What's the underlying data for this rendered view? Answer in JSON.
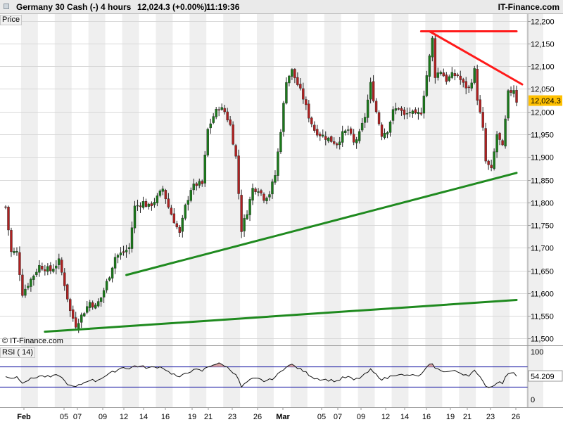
{
  "header": {
    "instrument": "Germany 30 Cash (-)",
    "timeframe": "4 hours",
    "quote": "12,024.3 (+0.00%)",
    "time": "11:19:36",
    "brand": "IT-Finance.com"
  },
  "price_panel_label": "Price",
  "watermark": "© IT-Finance.com",
  "rsi_panel_label": "RSI ( 14)",
  "current_price_label": "12,024.3",
  "current_rsi_label": "54.209",
  "colors": {
    "up": "#1a7a1a",
    "down": "#b02020",
    "support": "#1f8a1f",
    "resistance": "#ff1a1a",
    "price_tag": "#ffc000",
    "rsi_band": "#1010a0",
    "overbought_fill": "#d7a0a0",
    "oversold_fill": "#9aa0d8"
  },
  "chart_data": [
    {
      "type": "candlestick",
      "title": "Germany 30 Cash (-)",
      "interval": "4 hours",
      "ylabel": "Price",
      "ylim": [
        11485,
        12215
      ],
      "yticks": [
        11500,
        11550,
        11600,
        11650,
        11700,
        11750,
        11800,
        11850,
        11900,
        11950,
        12000,
        12050,
        12100,
        12150,
        12200
      ],
      "ytick_labels": [
        "11,500",
        "11,550",
        "11,600",
        "11,650",
        "11,700",
        "11,750",
        "11,800",
        "11,850",
        "11,900",
        "11,950",
        "12,000",
        "12,050",
        "12,100",
        "12,150",
        "12,200"
      ],
      "x_labels": [
        "Feb",
        "05",
        "07",
        "09",
        "12",
        "14",
        "16",
        "19",
        "21",
        "23",
        "26",
        "Mar",
        "05",
        "07",
        "09",
        "12",
        "14",
        "16",
        "19",
        "21",
        "23",
        "26"
      ],
      "grid": true,
      "last_price": 12024.3,
      "change_percent": 0.0,
      "path_nodes": [
        {
          "i": 0,
          "p": 11790
        },
        {
          "i": 2,
          "p": 11690
        },
        {
          "i": 4,
          "p": 11690
        },
        {
          "i": 6,
          "p": 11600
        },
        {
          "i": 9,
          "p": 11630
        },
        {
          "i": 12,
          "p": 11660
        },
        {
          "i": 16,
          "p": 11650
        },
        {
          "i": 19,
          "p": 11670
        },
        {
          "i": 21,
          "p": 11620
        },
        {
          "i": 23,
          "p": 11560
        },
        {
          "i": 25,
          "p": 11530
        },
        {
          "i": 27,
          "p": 11550
        },
        {
          "i": 30,
          "p": 11580
        },
        {
          "i": 32,
          "p": 11570
        },
        {
          "i": 34,
          "p": 11590
        },
        {
          "i": 37,
          "p": 11640
        },
        {
          "i": 39,
          "p": 11680
        },
        {
          "i": 42,
          "p": 11690
        },
        {
          "i": 44,
          "p": 11700
        },
        {
          "i": 46,
          "p": 11790
        },
        {
          "i": 49,
          "p": 11800
        },
        {
          "i": 51,
          "p": 11790
        },
        {
          "i": 54,
          "p": 11810
        },
        {
          "i": 56,
          "p": 11830
        },
        {
          "i": 58,
          "p": 11790
        },
        {
          "i": 60,
          "p": 11760
        },
        {
          "i": 62,
          "p": 11730
        },
        {
          "i": 64,
          "p": 11790
        },
        {
          "i": 66,
          "p": 11830
        },
        {
          "i": 68,
          "p": 11840
        },
        {
          "i": 70,
          "p": 11840
        },
        {
          "i": 72,
          "p": 11960
        },
        {
          "i": 74,
          "p": 11990
        },
        {
          "i": 76,
          "p": 12010
        },
        {
          "i": 78,
          "p": 12000
        },
        {
          "i": 80,
          "p": 11970
        },
        {
          "i": 82,
          "p": 11900
        },
        {
          "i": 84,
          "p": 11740
        },
        {
          "i": 86,
          "p": 11780
        },
        {
          "i": 88,
          "p": 11830
        },
        {
          "i": 90,
          "p": 11830
        },
        {
          "i": 92,
          "p": 11810
        },
        {
          "i": 94,
          "p": 11820
        },
        {
          "i": 96,
          "p": 11860
        },
        {
          "i": 98,
          "p": 11960
        },
        {
          "i": 100,
          "p": 12070
        },
        {
          "i": 102,
          "p": 12090
        },
        {
          "i": 104,
          "p": 12060
        },
        {
          "i": 106,
          "p": 12030
        },
        {
          "i": 108,
          "p": 11990
        },
        {
          "i": 110,
          "p": 11960
        },
        {
          "i": 112,
          "p": 11950
        },
        {
          "i": 115,
          "p": 11940
        },
        {
          "i": 118,
          "p": 11930
        },
        {
          "i": 120,
          "p": 11950
        },
        {
          "i": 122,
          "p": 11960
        },
        {
          "i": 124,
          "p": 11930
        },
        {
          "i": 126,
          "p": 11950
        },
        {
          "i": 128,
          "p": 11990
        },
        {
          "i": 130,
          "p": 12060
        },
        {
          "i": 132,
          "p": 12000
        },
        {
          "i": 134,
          "p": 11950
        },
        {
          "i": 136,
          "p": 11960
        },
        {
          "i": 138,
          "p": 12000
        },
        {
          "i": 140,
          "p": 12010
        },
        {
          "i": 142,
          "p": 11990
        },
        {
          "i": 144,
          "p": 12000
        },
        {
          "i": 146,
          "p": 11990
        },
        {
          "i": 148,
          "p": 12000
        },
        {
          "i": 150,
          "p": 12080
        },
        {
          "i": 152,
          "p": 12160
        },
        {
          "i": 153,
          "p": 12080
        },
        {
          "i": 155,
          "p": 12090
        },
        {
          "i": 157,
          "p": 12070
        },
        {
          "i": 159,
          "p": 12080
        },
        {
          "i": 161,
          "p": 12080
        },
        {
          "i": 163,
          "p": 12060
        },
        {
          "i": 165,
          "p": 12050
        },
        {
          "i": 167,
          "p": 12090
        },
        {
          "i": 168,
          "p": 12030
        },
        {
          "i": 170,
          "p": 11960
        },
        {
          "i": 171,
          "p": 11890
        },
        {
          "i": 173,
          "p": 11870
        },
        {
          "i": 175,
          "p": 11950
        },
        {
          "i": 177,
          "p": 11920
        },
        {
          "i": 179,
          "p": 12040
        },
        {
          "i": 181,
          "p": 12050
        },
        {
          "i": 182,
          "p": 12024
        }
      ],
      "trendlines": [
        {
          "name": "support-upper",
          "color": "green",
          "from": {
            "i": 43,
            "p": 11640
          },
          "to": {
            "i": 182,
            "p": 11865
          }
        },
        {
          "name": "support-lower",
          "color": "green",
          "from": {
            "i": 14,
            "p": 11515
          },
          "to": {
            "i": 182,
            "p": 11585
          }
        },
        {
          "name": "resistance-flat",
          "color": "red",
          "from": {
            "i": 148,
            "p": 12177
          },
          "to": {
            "i": 182,
            "p": 12177
          }
        },
        {
          "name": "resistance-falling",
          "color": "red",
          "from": {
            "i": 151,
            "p": 12177
          },
          "to": {
            "i": 184,
            "p": 12060
          }
        }
      ]
    },
    {
      "type": "line",
      "title": "RSI ( 14)",
      "ylim": [
        0,
        100
      ],
      "yticks": [
        0,
        100
      ],
      "bands": [
        30,
        70
      ],
      "last_value": 54.209,
      "nodes": [
        {
          "i": 0,
          "v": 52
        },
        {
          "i": 2,
          "v": 48
        },
        {
          "i": 4,
          "v": 50
        },
        {
          "i": 6,
          "v": 40
        },
        {
          "i": 9,
          "v": 46
        },
        {
          "i": 12,
          "v": 52
        },
        {
          "i": 16,
          "v": 50
        },
        {
          "i": 19,
          "v": 54
        },
        {
          "i": 21,
          "v": 42
        },
        {
          "i": 23,
          "v": 32
        },
        {
          "i": 25,
          "v": 30
        },
        {
          "i": 27,
          "v": 36
        },
        {
          "i": 30,
          "v": 45
        },
        {
          "i": 32,
          "v": 42
        },
        {
          "i": 34,
          "v": 48
        },
        {
          "i": 37,
          "v": 56
        },
        {
          "i": 39,
          "v": 62
        },
        {
          "i": 42,
          "v": 70
        },
        {
          "i": 44,
          "v": 66
        },
        {
          "i": 46,
          "v": 72
        },
        {
          "i": 49,
          "v": 70
        },
        {
          "i": 51,
          "v": 68
        },
        {
          "i": 54,
          "v": 70
        },
        {
          "i": 56,
          "v": 69
        },
        {
          "i": 58,
          "v": 60
        },
        {
          "i": 60,
          "v": 55
        },
        {
          "i": 62,
          "v": 48
        },
        {
          "i": 64,
          "v": 58
        },
        {
          "i": 66,
          "v": 62
        },
        {
          "i": 68,
          "v": 64
        },
        {
          "i": 70,
          "v": 62
        },
        {
          "i": 72,
          "v": 70
        },
        {
          "i": 74,
          "v": 75
        },
        {
          "i": 76,
          "v": 76
        },
        {
          "i": 78,
          "v": 73
        },
        {
          "i": 80,
          "v": 64
        },
        {
          "i": 82,
          "v": 56
        },
        {
          "i": 84,
          "v": 30
        },
        {
          "i": 86,
          "v": 40
        },
        {
          "i": 88,
          "v": 46
        },
        {
          "i": 90,
          "v": 46
        },
        {
          "i": 92,
          "v": 42
        },
        {
          "i": 94,
          "v": 44
        },
        {
          "i": 96,
          "v": 50
        },
        {
          "i": 98,
          "v": 60
        },
        {
          "i": 100,
          "v": 72
        },
        {
          "i": 102,
          "v": 74
        },
        {
          "i": 104,
          "v": 68
        },
        {
          "i": 106,
          "v": 62
        },
        {
          "i": 108,
          "v": 55
        },
        {
          "i": 110,
          "v": 48
        },
        {
          "i": 112,
          "v": 46
        },
        {
          "i": 115,
          "v": 44
        },
        {
          "i": 118,
          "v": 42
        },
        {
          "i": 120,
          "v": 48
        },
        {
          "i": 122,
          "v": 50
        },
        {
          "i": 124,
          "v": 44
        },
        {
          "i": 126,
          "v": 48
        },
        {
          "i": 128,
          "v": 55
        },
        {
          "i": 130,
          "v": 64
        },
        {
          "i": 132,
          "v": 54
        },
        {
          "i": 134,
          "v": 46
        },
        {
          "i": 136,
          "v": 48
        },
        {
          "i": 138,
          "v": 54
        },
        {
          "i": 140,
          "v": 56
        },
        {
          "i": 142,
          "v": 52
        },
        {
          "i": 144,
          "v": 54
        },
        {
          "i": 146,
          "v": 52
        },
        {
          "i": 148,
          "v": 54
        },
        {
          "i": 150,
          "v": 68
        },
        {
          "i": 152,
          "v": 78
        },
        {
          "i": 153,
          "v": 66
        },
        {
          "i": 155,
          "v": 64
        },
        {
          "i": 157,
          "v": 60
        },
        {
          "i": 159,
          "v": 62
        },
        {
          "i": 161,
          "v": 60
        },
        {
          "i": 163,
          "v": 56
        },
        {
          "i": 165,
          "v": 54
        },
        {
          "i": 167,
          "v": 62
        },
        {
          "i": 168,
          "v": 54
        },
        {
          "i": 170,
          "v": 44
        },
        {
          "i": 171,
          "v": 32
        },
        {
          "i": 173,
          "v": 30
        },
        {
          "i": 175,
          "v": 40
        },
        {
          "i": 177,
          "v": 38
        },
        {
          "i": 179,
          "v": 58
        },
        {
          "i": 181,
          "v": 60
        },
        {
          "i": 182,
          "v": 54
        }
      ]
    }
  ]
}
